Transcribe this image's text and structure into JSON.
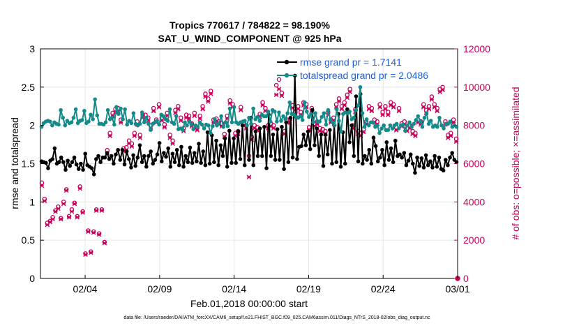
{
  "chart_data": {
    "type": "line",
    "title": "Tropics 770617 / 784822 = 98.190%",
    "subtitle": "SAT_U_WIND_COMPONENT @ 925 hPa",
    "xlabel": "Feb.01,2018 00:00:00 start",
    "ylabel": "rmse and totalspread",
    "ylabel_right": "# of obs: o=possible; ×=assimilated",
    "xlim": [
      0,
      28
    ],
    "ylim": [
      0,
      3
    ],
    "ylim_right": [
      0,
      12000
    ],
    "x_ticks": [
      {
        "x": 3,
        "label": "02/04"
      },
      {
        "x": 8,
        "label": "02/09"
      },
      {
        "x": 13,
        "label": "02/14"
      },
      {
        "x": 18,
        "label": "02/19"
      },
      {
        "x": 23,
        "label": "02/24"
      },
      {
        "x": 28,
        "label": "03/01"
      }
    ],
    "y_ticks": [
      "0",
      "0.5",
      "1",
      "1.5",
      "2",
      "2.5",
      "3"
    ],
    "y_ticks_right": [
      "0",
      "2000",
      "4000",
      "6000",
      "8000",
      "10000",
      "12000"
    ],
    "legend_position": "top-right",
    "series": [
      {
        "name": "rmse grand pr = 1.7141",
        "color": "#000000",
        "axis": "left",
        "values": [
          1.53,
          1.52,
          1.51,
          1.44,
          1.54,
          1.56,
          1.7,
          1.5,
          1.52,
          1.58,
          1.52,
          1.42,
          1.54,
          1.47,
          1.52,
          1.58,
          1.49,
          1.43,
          1.5,
          1.42,
          1.63,
          1.48,
          1.46,
          1.44,
          1.36,
          1.56,
          1.6,
          1.52,
          1.58,
          1.58,
          1.64,
          1.56,
          1.6,
          1.5,
          1.62,
          1.68,
          1.55,
          1.68,
          1.49,
          1.66,
          1.56,
          1.45,
          1.61,
          1.47,
          1.58,
          1.74,
          1.52,
          1.6,
          1.46,
          1.6,
          1.66,
          1.5,
          1.55,
          1.62,
          1.77,
          1.53,
          1.64,
          1.59,
          1.7,
          1.46,
          1.63,
          1.52,
          1.68,
          1.48,
          1.72,
          1.46,
          1.6,
          1.52,
          1.71,
          1.51,
          1.64,
          1.53,
          1.76,
          1.51,
          1.66,
          1.48,
          1.91,
          1.5,
          1.87,
          1.52,
          1.8,
          1.48,
          1.74,
          1.6,
          1.83,
          1.46,
          1.93,
          1.51,
          1.83,
          1.51,
          1.92,
          1.56,
          2.0,
          1.48,
          2.0,
          1.55,
          2.1,
          1.48,
          1.92,
          1.6,
          1.96,
          1.6,
          1.98,
          1.44,
          2.14,
          1.6,
          1.88,
          1.55,
          1.95,
          1.55,
          1.98,
          1.43,
          2.04,
          1.52,
          2.1,
          1.58,
          2.65,
          1.56,
          1.72,
          1.73,
          1.88,
          1.74,
          1.92,
          1.69,
          2.2,
          1.74,
          1.96,
          1.6,
          1.88,
          1.47,
          1.88,
          1.62,
          1.94,
          1.5,
          2.0,
          1.52,
          2.15,
          1.46,
          1.91,
          1.5,
          2.21,
          1.78,
          2.0,
          1.6,
          2.38,
          1.53,
          2.41,
          1.5,
          1.6,
          1.55,
          1.68,
          1.5,
          1.84,
          1.73,
          1.53,
          1.58,
          1.68,
          1.48,
          1.78,
          1.55,
          1.7,
          1.52,
          1.8,
          1.6,
          1.62,
          1.58,
          1.64,
          1.48,
          1.54,
          1.62,
          1.5,
          1.38,
          1.58,
          1.47,
          1.57,
          1.45,
          1.61,
          1.48,
          1.53,
          1.45,
          1.6,
          1.46,
          1.58,
          1.43,
          1.41,
          1.55,
          1.48,
          1.58,
          1.64,
          1.55,
          1.52
        ]
      },
      {
        "name": "totalspread grand pr = 2.0486",
        "color": "#148a8a",
        "axis": "left",
        "values": [
          1.98,
          2.03,
          2.05,
          2.06,
          2.05,
          2.0,
          2.04,
          2.02,
          2.01,
          2.2,
          2.1,
          2.0,
          2.06,
          2.03,
          2.04,
          2.1,
          2.21,
          2.03,
          2.06,
          2.07,
          2.19,
          2.03,
          2.05,
          2.14,
          2.08,
          2.34,
          2.13,
          2.02,
          2.02,
          2.01,
          2.04,
          2.2,
          2.08,
          2.1,
          2.01,
          2.24,
          2.15,
          2.22,
          2.08,
          2.21,
          2.01,
          2.06,
          2.03,
          2.16,
          2.02,
          2.0,
          2.02,
          2.17,
          2.04,
          2.1,
          2.02,
          1.94,
          2.02,
          2.04,
          2.06,
          2.01,
          2.14,
          2.12,
          2.08,
          2.06,
          2.21,
          2.04,
          2.02,
          2.12,
          1.95,
          1.96,
          1.94,
          2.04,
          2.0,
          2.05,
          2.02,
          1.95,
          2.0,
          1.98,
          2.04,
          2.01,
          1.96,
          2.01,
          2.0,
          1.9,
          1.99,
          2.08,
          2.0,
          2.03,
          2.12,
          1.98,
          2.04,
          1.99,
          2.22,
          2.04,
          2.24,
          2.04,
          2.02,
          2.04,
          2.05,
          2.06,
          2.0,
          2.1,
          2.02,
          2.22,
          2.08,
          2.11,
          2.06,
          2.14,
          2.12,
          2.12,
          2.18,
          2.05,
          2.2,
          2.18,
          2.05,
          2.17,
          2.06,
          2.12,
          2.08,
          2.16,
          2.3,
          2.15,
          2.14,
          2.11,
          2.1,
          2.12,
          2.07,
          2.3,
          2.18,
          2.11,
          2.15,
          2.04,
          2.16,
          2.05,
          2.05,
          2.11,
          2.16,
          2.01,
          2.2,
          2.08,
          2.04,
          2.0,
          2.21,
          2.06,
          1.92,
          2.15,
          2.17,
          2.16,
          2.18,
          2.08,
          2.1,
          2.2,
          2.26,
          2.5,
          2.16,
          1.98,
          2.08,
          2.0,
          2.04,
          2.04,
          1.98,
          2.0,
          1.9,
          1.96,
          2.0,
          1.94,
          1.94,
          2.0,
          1.96,
          2.0,
          2.02,
          1.96,
          2.0,
          2.01,
          1.93,
          2.0,
          2.04,
          1.98,
          2.02,
          2.07,
          2.12,
          2.05,
          1.98,
          2.1,
          2.16,
          2.02,
          2.06,
          1.98,
          2.0,
          1.98,
          2.1,
          2.0,
          1.96,
          2.02,
          2.02,
          2.05,
          1.98,
          2.0,
          1.98
        ]
      }
    ],
    "obs_possible": [
      5000,
      4150,
      2900,
      3000,
      3200,
      3550,
      3750,
      3150,
      4000,
      4650,
      3250,
      3600,
      3950,
      3250,
      4800,
      3500,
      1300,
      2500,
      1400,
      2450,
      3600,
      2350,
      3600,
      1900,
      6700,
      7600,
      8650,
      8850,
      8900,
      8300,
      6800,
      6850,
      7200,
      7050,
      7600,
      8200,
      7500,
      8550,
      8550,
      8400,
      8000,
      8900,
      8300,
      9100,
      8400,
      8050,
      8650,
      7500,
      7200,
      8800,
      9000,
      8400,
      7850,
      8550,
      8500,
      8100,
      8650,
      7900,
      8500,
      9000,
      9650,
      9400,
      9800,
      8300,
      8350,
      8200,
      8100,
      7550,
      8500,
      9300,
      9100,
      7600,
      7700,
      8950,
      8150,
      8000,
      6400,
      7400,
      8000,
      7900,
      8600,
      9200,
      8900,
      8000,
      8100,
      8000,
      10100,
      10400,
      9700,
      7700,
      8300,
      8300,
      9050,
      8700,
      9000,
      8700,
      9200,
      9100,
      7900,
      8900,
      8100,
      8200,
      7850,
      7800,
      7700,
      8700,
      8300,
      8400,
      9100,
      9400,
      9000,
      9200,
      9600,
      9900,
      8000,
      8850,
      7700,
      7600,
      7800,
      8200,
      9000,
      8900,
      8300,
      8200,
      9100,
      8700,
      9000,
      8700,
      9200,
      9100,
      7900,
      8900,
      8100,
      8200,
      7850,
      8000,
      7700,
      7600,
      8300,
      8200,
      9100,
      8800,
      9000,
      9500,
      9100,
      8900,
      9900,
      10000,
      8200,
      7500,
      7600,
      8300,
      7300
    ],
    "obs_assimilated": [
      4850,
      4050,
      2800,
      2950,
      3100,
      3500,
      3650,
      3100,
      3900,
      4600,
      3200,
      3500,
      3900,
      3200,
      4700,
      3450,
      1250,
      2450,
      1350,
      2400,
      3550,
      2300,
      3550,
      1850,
      6550,
      7450,
      8500,
      8700,
      8750,
      8150,
      6650,
      6700,
      7050,
      6900,
      7450,
      8050,
      7350,
      8400,
      8400,
      8250,
      7850,
      8750,
      8150,
      8950,
      8250,
      7900,
      8500,
      7350,
      7050,
      8650,
      8850,
      8250,
      7700,
      8400,
      8350,
      7950,
      8500,
      7750,
      8350,
      8850,
      9500,
      9250,
      9650,
      8150,
      8200,
      8050,
      7950,
      7400,
      8350,
      9150,
      8950,
      7450,
      7550,
      8800,
      8000,
      7850,
      5300,
      7250,
      7850,
      7750,
      8450,
      9050,
      8750,
      7850,
      7950,
      7850,
      9600,
      9900,
      9550,
      7550,
      8150,
      8150,
      8900,
      8550,
      8850,
      8550,
      9050,
      8950,
      7750,
      8750,
      7950,
      8050,
      7700,
      7650,
      7550,
      8550,
      8150,
      8250,
      8950,
      9250,
      8850,
      9050,
      9450,
      9750,
      7850,
      8700,
      7550,
      7450,
      7650,
      8050,
      8850,
      8750,
      8150,
      8050,
      8950,
      8550,
      8850,
      8550,
      9050,
      8950,
      7750,
      8750,
      7950,
      8050,
      7700,
      7850,
      7550,
      7450,
      8150,
      8050,
      8950,
      8650,
      8850,
      9350,
      8950,
      8750,
      9750,
      9850,
      8050,
      7350,
      7450,
      8150,
      7150
    ],
    "obs_last_point": 0,
    "footnote": "data file: /Users/raeder/DAI/ATM_forcXX/CAM6_setup/f.e21.FHIST_BGC.f09_025.CAM6assim.011/Diags_NTrS_2018-02/obs_diag_output.nc",
    "colors": {
      "rmse": "#000000",
      "spread": "#148a8a",
      "obs": "#c8005a",
      "legend_text": "#1f5fd6",
      "grid": "#e6e6e6"
    }
  }
}
